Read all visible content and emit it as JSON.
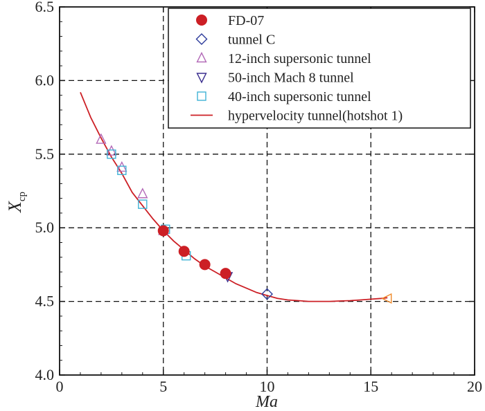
{
  "chart_data": {
    "type": "scatter",
    "title": "",
    "xlabel": "Ma",
    "ylabel_main": "X",
    "ylabel_sub": "cp",
    "xlim": [
      0,
      20
    ],
    "ylim": [
      4.0,
      6.5
    ],
    "xticks": [
      "0",
      "5",
      "10",
      "15",
      "20"
    ],
    "yticks": [
      "4.0",
      "4.5",
      "5.0",
      "5.5",
      "6.0",
      "6.5"
    ],
    "grid": true,
    "legend_position": "top-right",
    "colors": {
      "fd07": "#cc1f25",
      "tunnel_c": "#2b3a9a",
      "twelve_inch": "#b36ab8",
      "fifty_inch": "#3b2f8f",
      "forty_inch": "#3fb2d6",
      "hotshot": "#ef8a2a",
      "curve": "#cc1f25",
      "grid": "#111111",
      "axis": "#111111"
    },
    "series": [
      {
        "name": "FD-07",
        "marker": "filled-circle",
        "color_key": "fd07",
        "points": [
          [
            5.0,
            4.98
          ],
          [
            6.0,
            4.84
          ],
          [
            7.0,
            4.75
          ],
          [
            8.0,
            4.69
          ]
        ]
      },
      {
        "name": "tunnel C",
        "marker": "diamond",
        "color_key": "tunnel_c",
        "points": [
          [
            10.0,
            4.55
          ]
        ]
      },
      {
        "name": "12-inch supersonic tunnel",
        "marker": "triangle-up",
        "color_key": "twelve_inch",
        "points": [
          [
            2.0,
            5.6
          ],
          [
            2.5,
            5.52
          ],
          [
            3.0,
            5.41
          ],
          [
            4.0,
            5.23
          ],
          [
            5.0,
            4.98
          ]
        ]
      },
      {
        "name": "50-inch Mach 8 tunnel",
        "marker": "triangle-down",
        "color_key": "fifty_inch",
        "points": [
          [
            8.1,
            4.67
          ]
        ]
      },
      {
        "name": "40-inch supersonic tunnel",
        "marker": "square",
        "color_key": "forty_inch",
        "points": [
          [
            2.5,
            5.5
          ],
          [
            3.0,
            5.39
          ],
          [
            4.0,
            5.16
          ],
          [
            5.1,
            4.99
          ],
          [
            6.1,
            4.81
          ]
        ]
      },
      {
        "name": "hypervelocity tunnel(hotshot 1)",
        "marker": "triangle-left",
        "color_key": "hotshot",
        "points": [
          [
            15.8,
            4.52
          ]
        ]
      }
    ],
    "fit_curve": {
      "name": "hypervelocity tunnel(hotshot 1)",
      "color_key": "curve",
      "x": [
        1.0,
        1.5,
        2.0,
        2.5,
        3.0,
        3.5,
        4.0,
        4.5,
        5.0,
        5.5,
        6.0,
        6.5,
        7.0,
        7.5,
        8.0,
        8.5,
        9.0,
        9.5,
        10.0,
        10.5,
        11.0,
        11.5,
        12.0,
        12.5,
        13.0,
        13.5,
        14.0,
        14.5,
        15.0,
        15.5,
        15.8
      ],
      "y": [
        5.92,
        5.75,
        5.61,
        5.48,
        5.37,
        5.24,
        5.15,
        5.06,
        4.98,
        4.91,
        4.85,
        4.79,
        4.74,
        4.7,
        4.66,
        4.62,
        4.59,
        4.56,
        4.54,
        4.52,
        4.51,
        4.505,
        4.5,
        4.5,
        4.5,
        4.503,
        4.505,
        4.51,
        4.515,
        4.52,
        4.525
      ]
    },
    "legend": [
      {
        "label": "FD-07",
        "marker": "filled-circle",
        "color_key": "fd07"
      },
      {
        "label": "tunnel C",
        "marker": "diamond",
        "color_key": "tunnel_c"
      },
      {
        "label": "12-inch supersonic tunnel",
        "marker": "triangle-up",
        "color_key": "twelve_inch"
      },
      {
        "label": "50-inch Mach 8 tunnel",
        "marker": "triangle-down",
        "color_key": "fifty_inch"
      },
      {
        "label": "40-inch supersonic tunnel",
        "marker": "square",
        "color_key": "forty_inch"
      },
      {
        "label": "hypervelocity tunnel(hotshot 1)",
        "marker": "line",
        "color_key": "curve"
      }
    ]
  }
}
